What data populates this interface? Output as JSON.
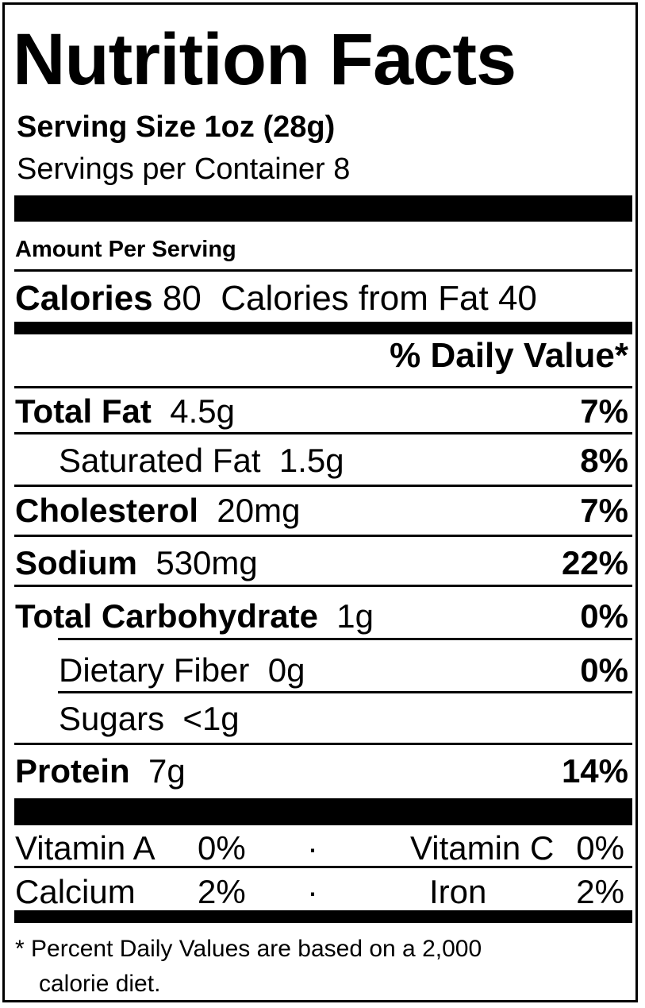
{
  "title": "Nutrition Facts",
  "serving": {
    "size_label": "Serving Size 1oz (28g)",
    "per_container": "Servings per Container 8"
  },
  "amount_per_serving": "Amount Per Serving",
  "calories": {
    "label": "Calories",
    "value": "80",
    "from_fat_label": "Calories from Fat",
    "from_fat_value": "40"
  },
  "daily_value_header": "% Daily Value*",
  "nutrients": {
    "total_fat": {
      "label": "Total Fat",
      "amount": "4.5g",
      "dv": "7%"
    },
    "saturated_fat": {
      "label": "Saturated Fat",
      "amount": "1.5g",
      "dv": "8%"
    },
    "cholesterol": {
      "label": "Cholesterol",
      "amount": "20mg",
      "dv": "7%"
    },
    "sodium": {
      "label": "Sodium",
      "amount": "530mg",
      "dv": "22%"
    },
    "total_carbohydrate": {
      "label": "Total Carbohydrate",
      "amount": "1g",
      "dv": "0%"
    },
    "dietary_fiber": {
      "label": "Dietary Fiber",
      "amount": "0g",
      "dv": "0%"
    },
    "sugars": {
      "label": "Sugars",
      "amount": "<1g"
    },
    "protein": {
      "label": "Protein",
      "amount": "7g",
      "dv": "14%"
    }
  },
  "vitamins": {
    "vitamin_a": {
      "label": "Vitamin A",
      "value": "0%"
    },
    "vitamin_c": {
      "label": "Vitamin C",
      "value": "0%"
    },
    "calcium": {
      "label": "Calcium",
      "value": "2%"
    },
    "iron": {
      "label": "Iron",
      "value": "2%"
    },
    "separator": "·"
  },
  "footnote": {
    "line1": "* Percent Daily Values are based on a 2,000",
    "line2": "calorie diet."
  }
}
